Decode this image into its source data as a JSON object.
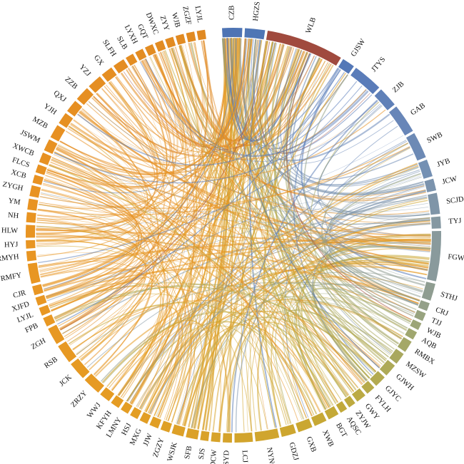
{
  "chart_data": {
    "type": "chord",
    "nodes": [
      {
        "label": "CZB",
        "weight": 2.2,
        "color": "#4e74b4"
      },
      {
        "label": "HGZS",
        "weight": 2.2,
        "color": "#4f76b5"
      },
      {
        "label": "WLB",
        "weight": 8.5,
        "color": "#a04a3e"
      },
      {
        "label": "GJSW",
        "weight": 1.4,
        "color": "#5478b7"
      },
      {
        "label": "JTYS",
        "weight": 3.3,
        "color": "#5a7cb9"
      },
      {
        "label": "ZJB",
        "weight": 2.2,
        "color": "#5f80b8"
      },
      {
        "label": "GAB",
        "weight": 3.2,
        "color": "#6886b8"
      },
      {
        "label": "SWB",
        "weight": 2.9,
        "color": "#6d8ab5"
      },
      {
        "label": "JYB",
        "weight": 1.9,
        "color": "#7490b3"
      },
      {
        "label": "JCW",
        "weight": 1.3,
        "color": "#7b93ad"
      },
      {
        "label": "SCJD",
        "weight": 2.3,
        "color": "#7f95a8"
      },
      {
        "label": "TYJ",
        "weight": 1.3,
        "color": "#8598a2"
      },
      {
        "label": "FGW",
        "weight": 5.5,
        "color": "#899a9c"
      },
      {
        "label": "STHJ",
        "weight": 1.9,
        "color": "#8f9d91"
      },
      {
        "label": "CRJ",
        "weight": 0.9,
        "color": "#94a088"
      },
      {
        "label": "TJJ",
        "weight": 0.9,
        "color": "#98a37f"
      },
      {
        "label": "WJB",
        "weight": 0.8,
        "color": "#9ca577"
      },
      {
        "label": "AQB",
        "weight": 0.9,
        "color": "#a0a76f"
      },
      {
        "label": "RMBX",
        "weight": 1.3,
        "color": "#a5a867"
      },
      {
        "label": "MZSW",
        "weight": 1.3,
        "color": "#a9a85e"
      },
      {
        "label": "GJWH",
        "weight": 1.4,
        "color": "#aeaa57"
      },
      {
        "label": "GJYC",
        "weight": 1.3,
        "color": "#b3aa50"
      },
      {
        "label": "FYLH",
        "weight": 1.0,
        "color": "#b7aa4a"
      },
      {
        "label": "GWY",
        "weight": 1.1,
        "color": "#bbaa44"
      },
      {
        "label": "ZYJW",
        "weight": 0.8,
        "color": "#beaa3f"
      },
      {
        "label": "AQSC",
        "weight": 0.8,
        "color": "#c1a93a"
      },
      {
        "label": "BGT",
        "weight": 1.2,
        "color": "#c4a937"
      },
      {
        "label": "XWB",
        "weight": 1.4,
        "color": "#c7a834"
      },
      {
        "label": "GXB",
        "weight": 1.6,
        "color": "#caa731"
      },
      {
        "label": "GDZJ",
        "weight": 1.6,
        "color": "#cda62f"
      },
      {
        "label": "NYNC",
        "weight": 2.6,
        "color": "#d0a52e"
      },
      {
        "label": "LCJ",
        "weight": 2.0,
        "color": "#d2a42c"
      },
      {
        "label": "WSYD",
        "weight": 1.0,
        "color": "#d5a32b"
      },
      {
        "label": "RDCW",
        "weight": 1.0,
        "color": "#d7a32a"
      },
      {
        "label": "SJS",
        "weight": 0.9,
        "color": "#d9a229"
      },
      {
        "label": "SFB",
        "weight": 1.3,
        "color": "#dba128"
      },
      {
        "label": "WSJK",
        "weight": 1.3,
        "color": "#dda027"
      },
      {
        "label": "ZGZY",
        "weight": 1.0,
        "color": "#dfa026"
      },
      {
        "label": "JJW",
        "weight": 1.0,
        "color": "#e19f25"
      },
      {
        "label": "MXG",
        "weight": 0.9,
        "color": "#e29e25"
      },
      {
        "label": "HSJ",
        "weight": 0.9,
        "color": "#e39e24"
      },
      {
        "label": "LMNY",
        "weight": 0.9,
        "color": "#e49d24"
      },
      {
        "label": "KFYH",
        "weight": 1.0,
        "color": "#e59c23"
      },
      {
        "label": "WWJ",
        "weight": 1.2,
        "color": "#e59b23"
      },
      {
        "label": "ZRZY",
        "weight": 2.0,
        "color": "#e69a23"
      },
      {
        "label": "JCK",
        "weight": 2.0,
        "color": "#e69a23"
      },
      {
        "label": "RSB",
        "weight": 2.1,
        "color": "#e79923"
      },
      {
        "label": "ZGH",
        "weight": 1.9,
        "color": "#e79823"
      },
      {
        "label": "FPB",
        "weight": 1.0,
        "color": "#e89823"
      },
      {
        "label": "LYJL",
        "weight": 0.9,
        "color": "#e89723"
      },
      {
        "label": "XJFD",
        "weight": 0.9,
        "color": "#e89723"
      },
      {
        "label": "CJR",
        "weight": 1.0,
        "color": "#e89623"
      },
      {
        "label": "RMFY",
        "weight": 2.2,
        "color": "#e89622"
      },
      {
        "label": "RMYH",
        "weight": 1.1,
        "color": "#e89522"
      },
      {
        "label": "HYJ",
        "weight": 0.9,
        "color": "#e89522"
      },
      {
        "label": "HLW",
        "weight": 1.4,
        "color": "#e89422"
      },
      {
        "label": "NH",
        "weight": 1.1,
        "color": "#e89422"
      },
      {
        "label": "YM",
        "weight": 1.2,
        "color": "#e89322"
      },
      {
        "label": "ZYGH",
        "weight": 1.2,
        "color": "#e89322"
      },
      {
        "label": "XCB",
        "weight": 0.9,
        "color": "#e89222"
      },
      {
        "label": "FLCS",
        "weight": 0.9,
        "color": "#e89222"
      },
      {
        "label": "XWCB",
        "weight": 1.1,
        "color": "#e79122"
      },
      {
        "label": "JSWM",
        "weight": 1.3,
        "color": "#e79122"
      },
      {
        "label": "MZB",
        "weight": 1.5,
        "color": "#e79022"
      },
      {
        "label": "YJH",
        "weight": 1.3,
        "color": "#e69022"
      },
      {
        "label": "QXJ",
        "weight": 1.4,
        "color": "#e68f22"
      },
      {
        "label": "ZZB",
        "weight": 1.6,
        "color": "#e68f22"
      },
      {
        "label": "YZJ",
        "weight": 1.6,
        "color": "#e58e22"
      },
      {
        "label": "GX",
        "weight": 1.3,
        "color": "#e58e22"
      },
      {
        "label": "SLFH",
        "weight": 1.3,
        "color": "#e48d22"
      },
      {
        "label": "SLB",
        "weight": 0.9,
        "color": "#e48d22"
      },
      {
        "label": "LYXH",
        "weight": 0.9,
        "color": "#e38c22"
      },
      {
        "label": "GQT",
        "weight": 0.9,
        "color": "#e38c22"
      },
      {
        "label": "DWXC",
        "weight": 0.9,
        "color": "#e28b22"
      },
      {
        "label": "ZYY",
        "weight": 0.9,
        "color": "#e28b22"
      },
      {
        "label": "WJB",
        "weight": 0.9,
        "color": "#e18a22"
      },
      {
        "label": "ZGZF",
        "weight": 0.9,
        "color": "#e18a22"
      },
      {
        "label": "LYJL",
        "weight": 0.9,
        "color": "#e08922"
      }
    ],
    "links_from_nodes": [
      {
        "from": "CZB",
        "to_count": 46
      },
      {
        "from": "HGZS",
        "to_count": 20
      },
      {
        "from": "WLB",
        "to_count": 60
      },
      {
        "from": "FGW",
        "to_count": 40
      }
    ]
  }
}
